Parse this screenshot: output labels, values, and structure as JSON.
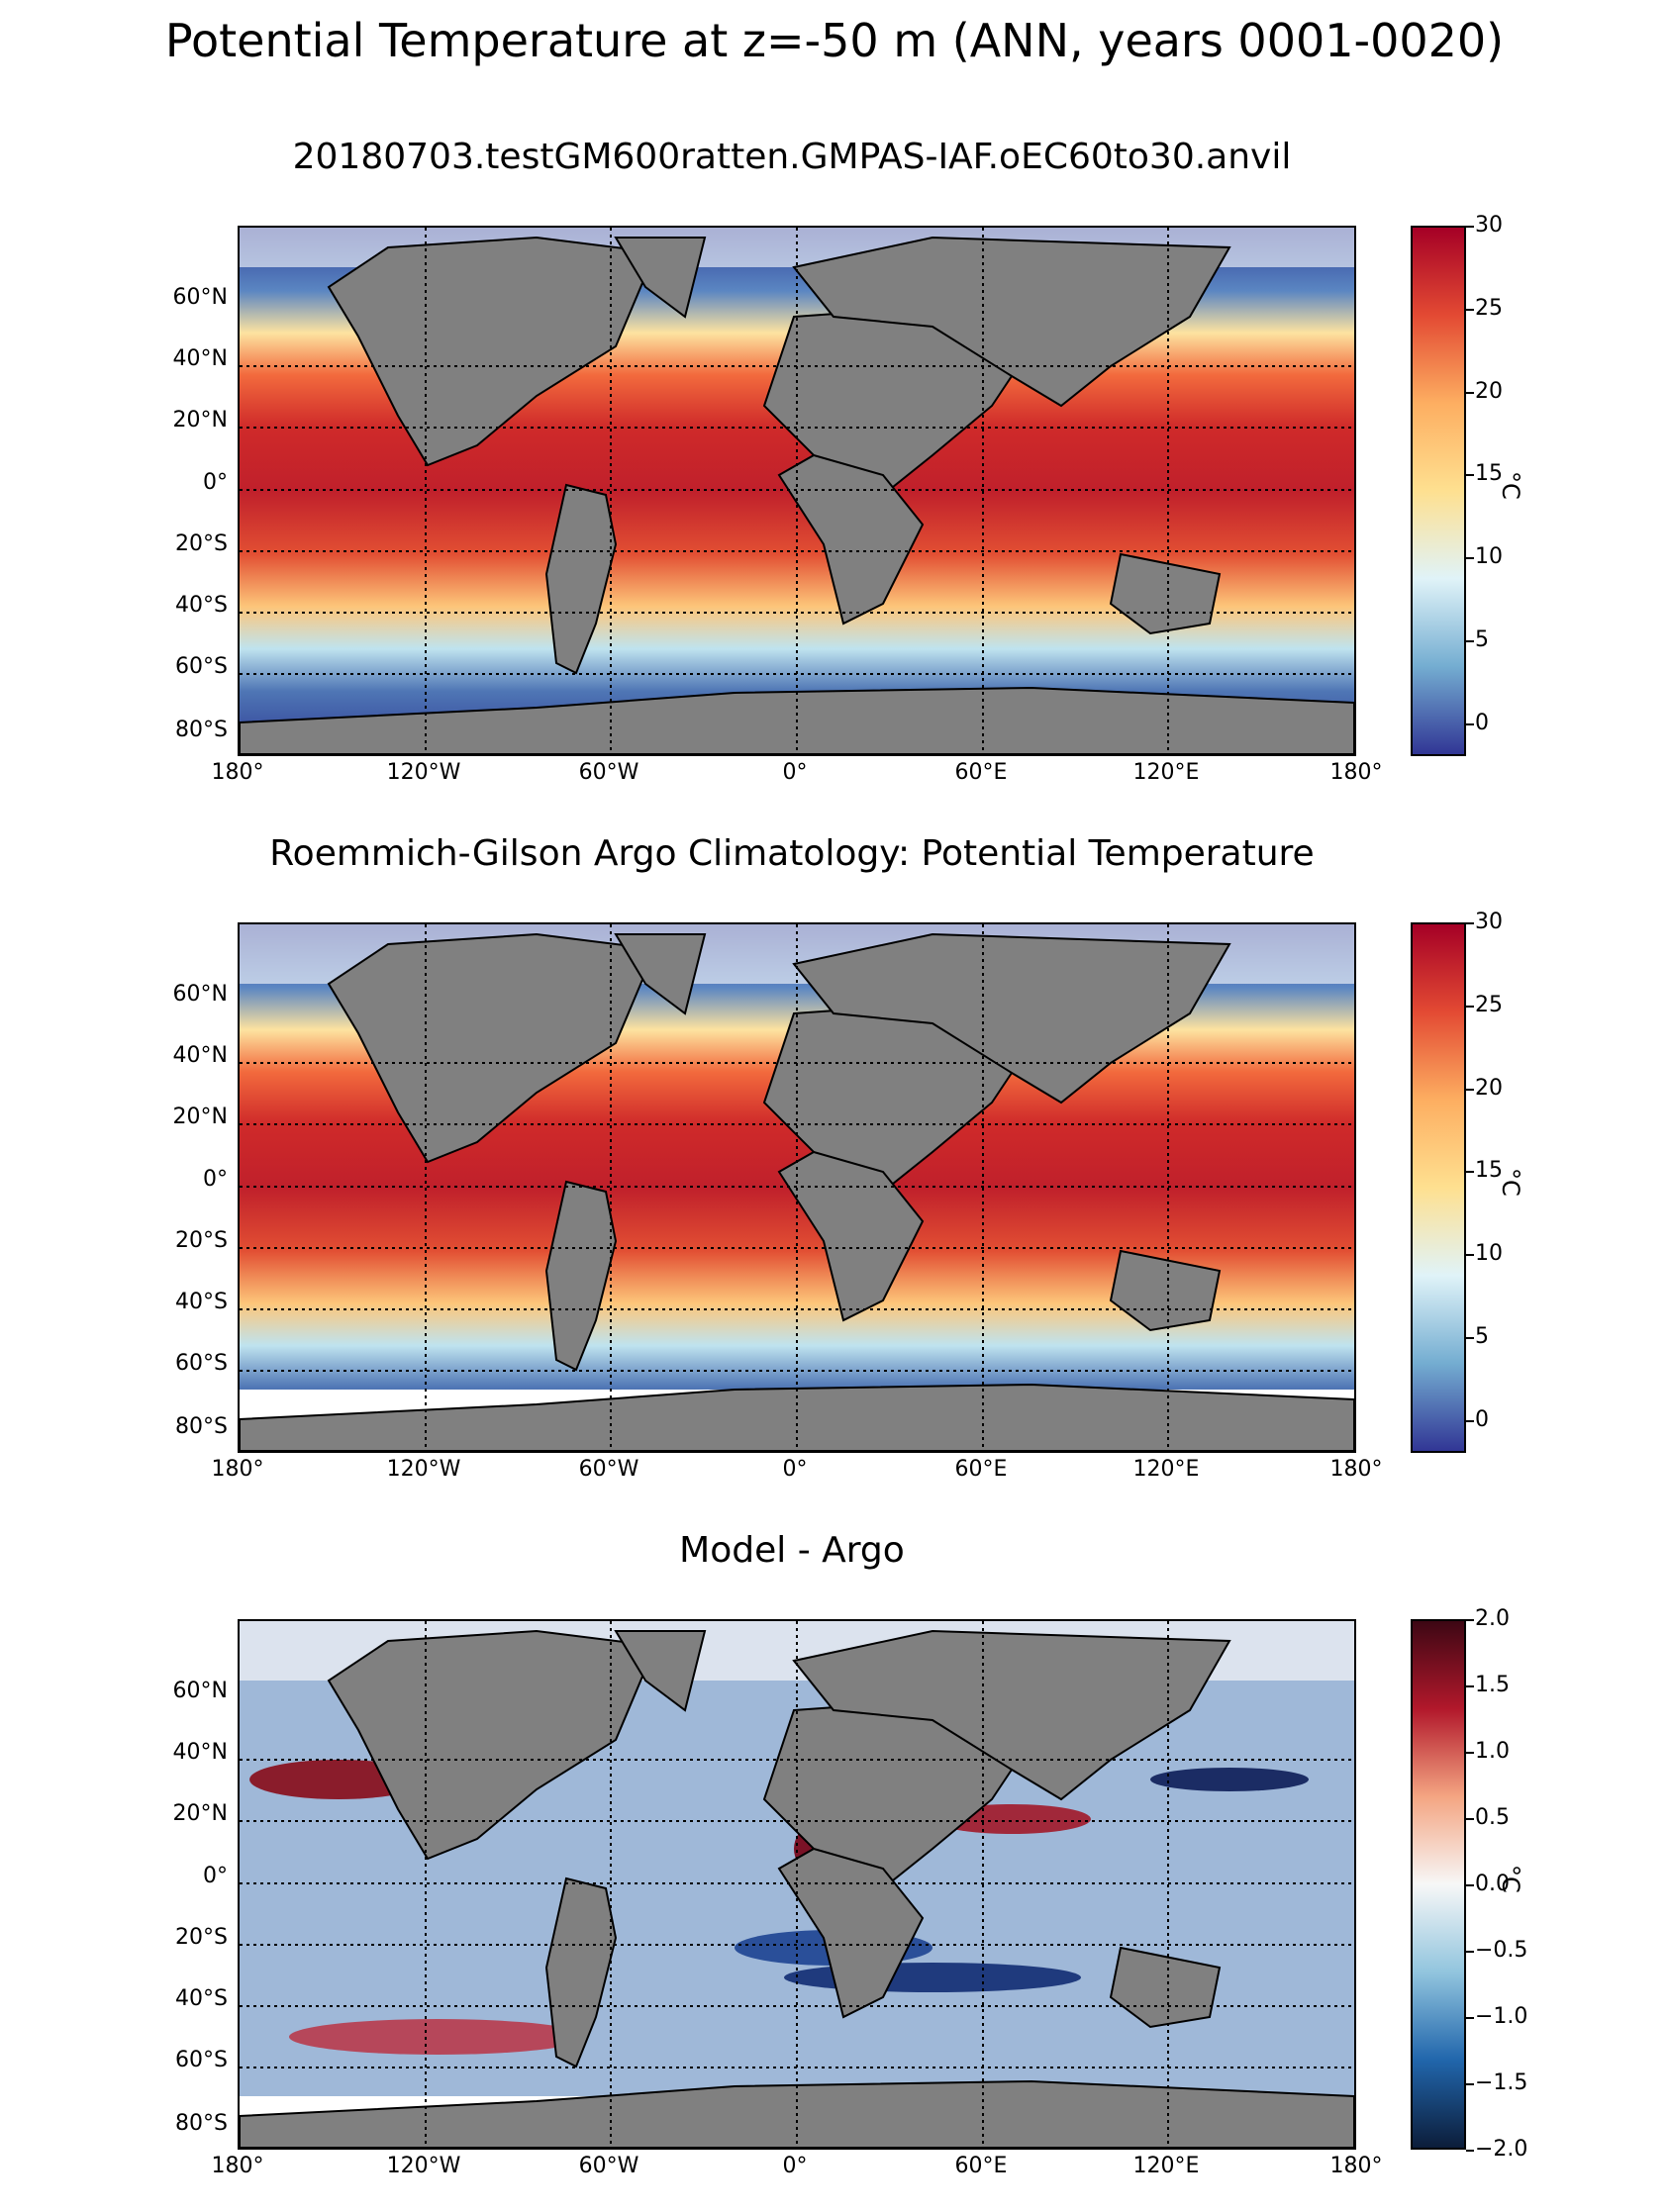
{
  "suptitle": "Potential Temperature at z=-50 m (ANN, years 0001-0020)",
  "panels": [
    {
      "title": "20180703.testGM600ratten.GMPAS-IAF.oEC60to30.anvil",
      "colormap": "RdYlBu_r",
      "colorbar": {
        "ticks": [
          "30",
          "25",
          "20",
          "15",
          "10",
          "5",
          "0"
        ],
        "unit": "°C",
        "range": [
          -2,
          30
        ]
      }
    },
    {
      "title": "Roemmich-Gilson Argo Climatology: Potential Temperature",
      "colormap": "RdYlBu_r",
      "colorbar": {
        "ticks": [
          "30",
          "25",
          "20",
          "15",
          "10",
          "5",
          "0"
        ],
        "unit": "°C",
        "range": [
          -2,
          30
        ]
      }
    },
    {
      "title": "Model - Argo",
      "colormap": "balance",
      "colorbar": {
        "ticks": [
          "2.0",
          "1.5",
          "1.0",
          "0.5",
          "0.0",
          "−0.5",
          "−1.0",
          "−1.5",
          "−2.0"
        ],
        "unit": "°C",
        "range": [
          -2,
          2
        ]
      }
    }
  ],
  "axes": {
    "lat_labels": [
      "60°N",
      "40°N",
      "20°N",
      "0°",
      "20°S",
      "40°S",
      "60°S",
      "80°S"
    ],
    "lon_labels": [
      "180°",
      "120°W",
      "60°W",
      "0°",
      "60°E",
      "120°E",
      "180°"
    ]
  },
  "colors": {
    "land": "#808080",
    "coast": "#000000",
    "warm": "#b2182b",
    "cold": "#313695",
    "diff_pos": "#67001f",
    "diff_neg": "#053061"
  }
}
